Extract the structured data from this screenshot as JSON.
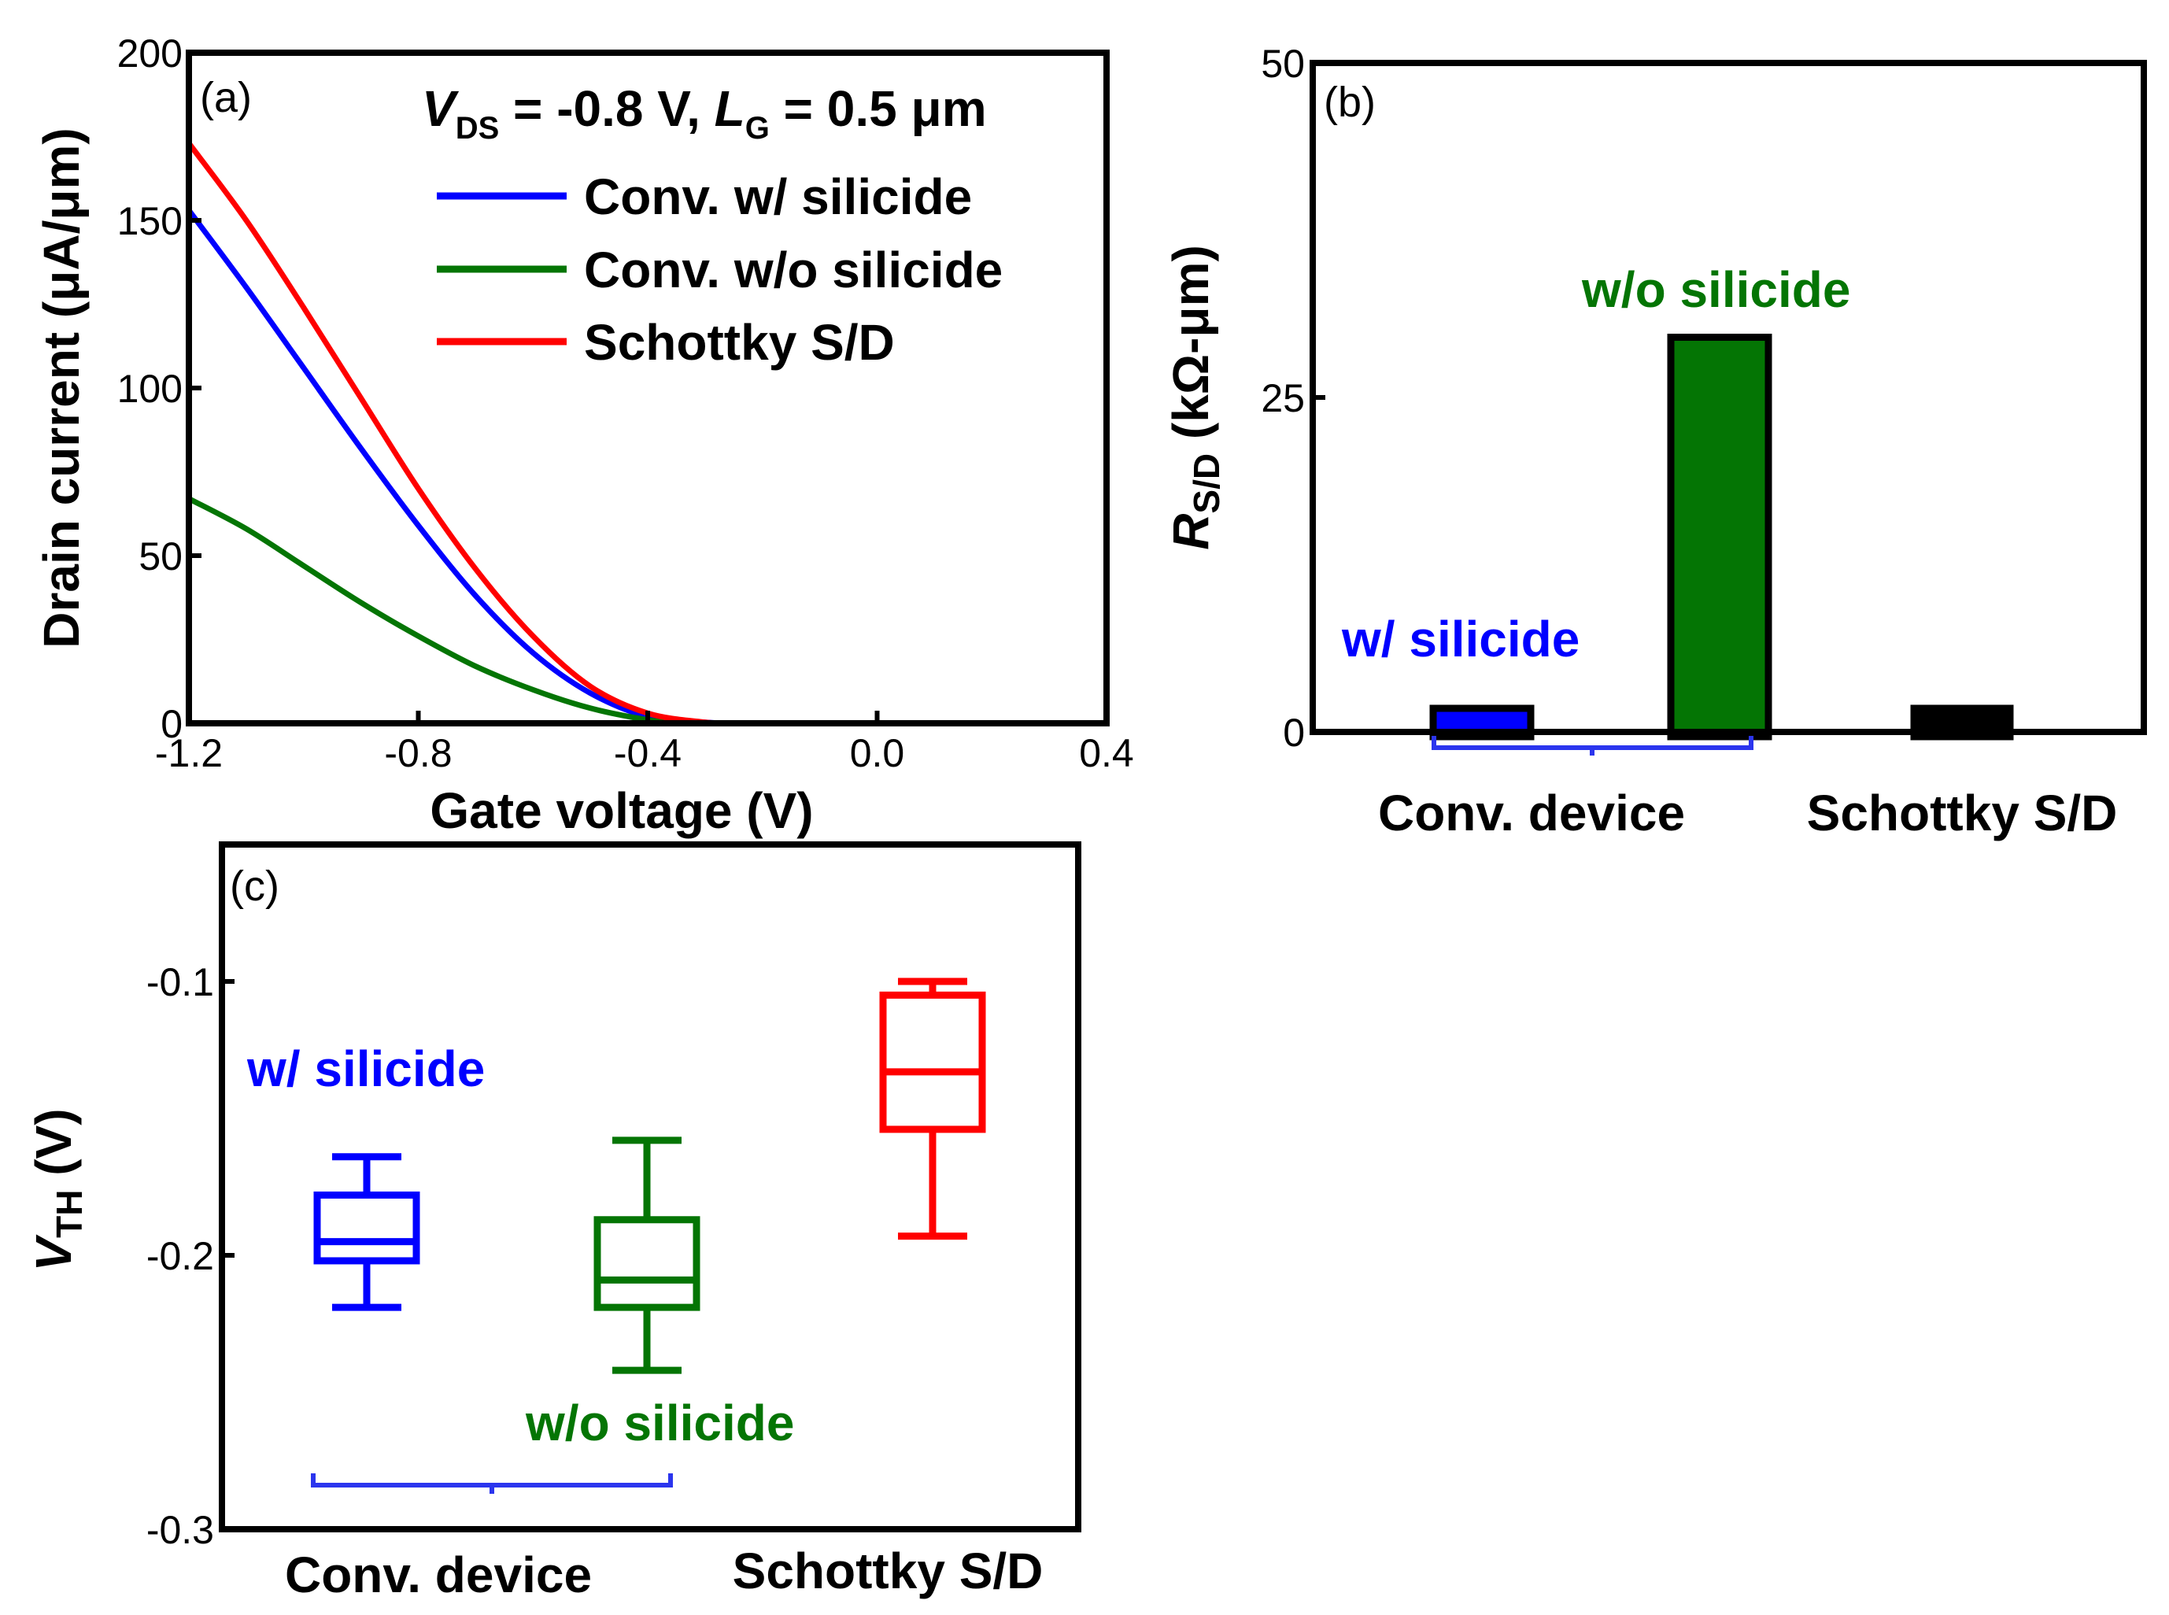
{
  "colors": {
    "blue": "#0000ff",
    "green": "#047504",
    "red": "#ff0000",
    "black": "#000000",
    "bracket": "#2b35ee"
  },
  "chart_data": [
    {
      "panel": "(a)",
      "type": "line",
      "xlabel": "Gate voltage (V)",
      "ylabel": "Drain current (μA/μm)",
      "xlim": [
        -1.2,
        0.4
      ],
      "ylim": [
        0,
        200
      ],
      "xticks": [
        -1.2,
        -0.8,
        -0.4,
        0.0,
        0.4
      ],
      "xtick_labels": [
        "-1.2",
        "-0.8",
        "-0.4",
        "0.0",
        "0.4"
      ],
      "yticks": [
        0,
        50,
        100,
        150,
        200
      ],
      "ytick_labels": [
        "0",
        "50",
        "100",
        "150",
        "200"
      ],
      "condition": {
        "vds_sym": "V",
        "vds_sub": "DS",
        "vds_val": " = -0.8 V, ",
        "lg_sym": "L",
        "lg_sub": "G",
        "lg_val": " = 0.5 μm"
      },
      "series": [
        {
          "name": "Conv. w/ silicide",
          "color": "#0000ff",
          "x": [
            -1.2,
            -1.1,
            -1.0,
            -0.9,
            -0.8,
            -0.7,
            -0.6,
            -0.5,
            -0.4,
            -0.3,
            -0.25,
            -0.2,
            0.0,
            0.4
          ],
          "y": [
            153,
            130,
            106,
            82,
            59,
            38,
            21,
            9,
            2,
            0.3,
            0,
            0,
            0,
            0
          ]
        },
        {
          "name": "Conv. w/o silicide",
          "color": "#047504",
          "x": [
            -1.2,
            -1.1,
            -1.0,
            -0.9,
            -0.8,
            -0.7,
            -0.6,
            -0.5,
            -0.4,
            -0.35,
            -0.3,
            0.0,
            0.4
          ],
          "y": [
            67,
            58,
            47,
            36,
            26,
            17,
            10,
            4.5,
            1,
            0.2,
            0,
            0,
            0
          ]
        },
        {
          "name": "Schottky S/D",
          "color": "#ff0000",
          "x": [
            -1.2,
            -1.1,
            -1.0,
            -0.9,
            -0.8,
            -0.7,
            -0.6,
            -0.5,
            -0.4,
            -0.3,
            -0.25,
            -0.2,
            0.0,
            0.4
          ],
          "y": [
            173,
            150,
            124,
            97,
            70,
            46,
            26,
            11,
            3,
            0.3,
            0,
            0,
            0,
            0
          ]
        }
      ]
    },
    {
      "panel": "(b)",
      "type": "bar",
      "ylabel_sym": "R",
      "ylabel_sub": "S/D",
      "ylabel_rest": " (kΩ-μm)",
      "ylim": [
        0,
        50
      ],
      "yticks": [
        0,
        25,
        50
      ],
      "ytick_labels": [
        "0",
        "25",
        "50"
      ],
      "categories": [
        "Conv. device",
        "Schottky S/D"
      ],
      "bars": [
        {
          "name": "w/ silicide",
          "group": "Conv. device",
          "value": 1.6,
          "color": "#0000ff"
        },
        {
          "name": "w/o silicide",
          "group": "Conv. device",
          "value": 29.5,
          "color": "#047504"
        },
        {
          "name": "Schottky S/D",
          "group": "Schottky S/D",
          "value": 0.5,
          "color": "#000000"
        }
      ],
      "annotations": [
        "w/ silicide",
        "w/o silicide"
      ]
    },
    {
      "panel": "(c)",
      "type": "box",
      "ylabel_sym": "V",
      "ylabel_sub": "TH",
      "ylabel_rest": " (V)",
      "ylim": [
        -0.3,
        -0.05
      ],
      "yticks": [
        -0.3,
        -0.2,
        -0.1
      ],
      "ytick_labels": [
        "-0.3",
        "-0.2",
        "-0.1"
      ],
      "categories": [
        "Conv. device",
        "Schottky S/D"
      ],
      "boxes": [
        {
          "name": "w/ silicide",
          "color": "#0000ff",
          "min": -0.219,
          "q1": -0.202,
          "median": -0.195,
          "q3": -0.178,
          "max": -0.164
        },
        {
          "name": "w/o silicide",
          "color": "#047504",
          "min": -0.242,
          "q1": -0.219,
          "median": -0.209,
          "q3": -0.187,
          "max": -0.158
        },
        {
          "name": "Schottky S/D",
          "color": "#ff0000",
          "min": -0.193,
          "q1": -0.154,
          "median": -0.133,
          "q3": -0.105,
          "max": -0.1
        }
      ],
      "annotations": [
        "w/ silicide",
        "w/o silicide"
      ]
    }
  ]
}
